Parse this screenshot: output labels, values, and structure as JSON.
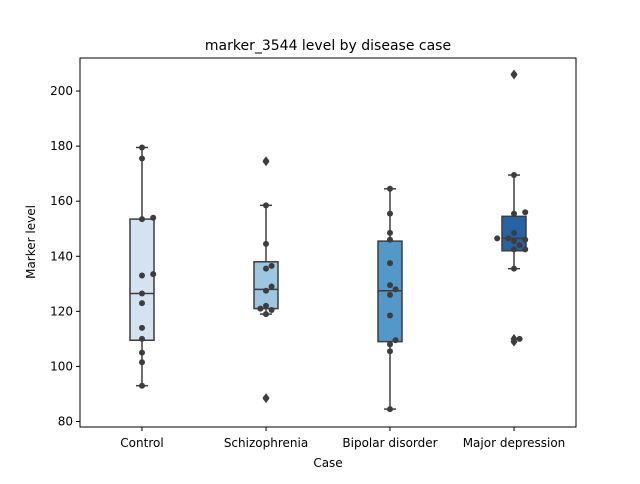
{
  "chart_data": {
    "type": "box",
    "title": "marker_3544 level by disease case",
    "xlabel": "Case",
    "ylabel": "Marker level",
    "ylim": [
      78,
      212
    ],
    "yticks": [
      80,
      100,
      120,
      140,
      160,
      180,
      200
    ],
    "grid": false,
    "categories": [
      "Control",
      "Schizophrenia",
      "Bipolar disorder",
      "Major depression"
    ],
    "colors": [
      "#d3e3f2",
      "#9dc6e0",
      "#5298c9",
      "#2563a6"
    ],
    "boxes": [
      {
        "q1": 109.5,
        "median": 126.5,
        "q3": 153.5,
        "whisker_low": 93,
        "whisker_high": 179.5,
        "outliers": []
      },
      {
        "q1": 121,
        "median": 128,
        "q3": 138,
        "whisker_low": 119,
        "whisker_high": 158.5,
        "outliers": [
          174.5,
          88.5
        ]
      },
      {
        "q1": 109,
        "median": 127.5,
        "q3": 145.5,
        "whisker_low": 84.5,
        "whisker_high": 164.5,
        "outliers": []
      },
      {
        "q1": 142,
        "median": 146.5,
        "q3": 154.5,
        "whisker_low": 135.5,
        "whisker_high": 169.5,
        "outliers": [
          206,
          110,
          109
        ]
      }
    ],
    "points": [
      [
        179.5,
        175.5,
        154,
        153.5,
        133.5,
        133,
        126.5,
        123,
        114,
        110,
        105,
        101.5,
        93
      ],
      [
        174.5,
        158.5,
        144.5,
        136.5,
        135.5,
        129,
        127.5,
        122,
        121,
        120.5,
        119,
        88.5
      ],
      [
        164.5,
        155.5,
        148.5,
        146,
        137.5,
        129.5,
        128,
        126,
        118.5,
        109.5,
        108,
        105.5,
        84.5
      ],
      [
        206,
        169.5,
        156,
        155.5,
        148.5,
        146.5,
        146.5,
        146,
        145.5,
        144,
        142.5,
        142.5,
        135.5,
        110,
        109
      ]
    ]
  }
}
